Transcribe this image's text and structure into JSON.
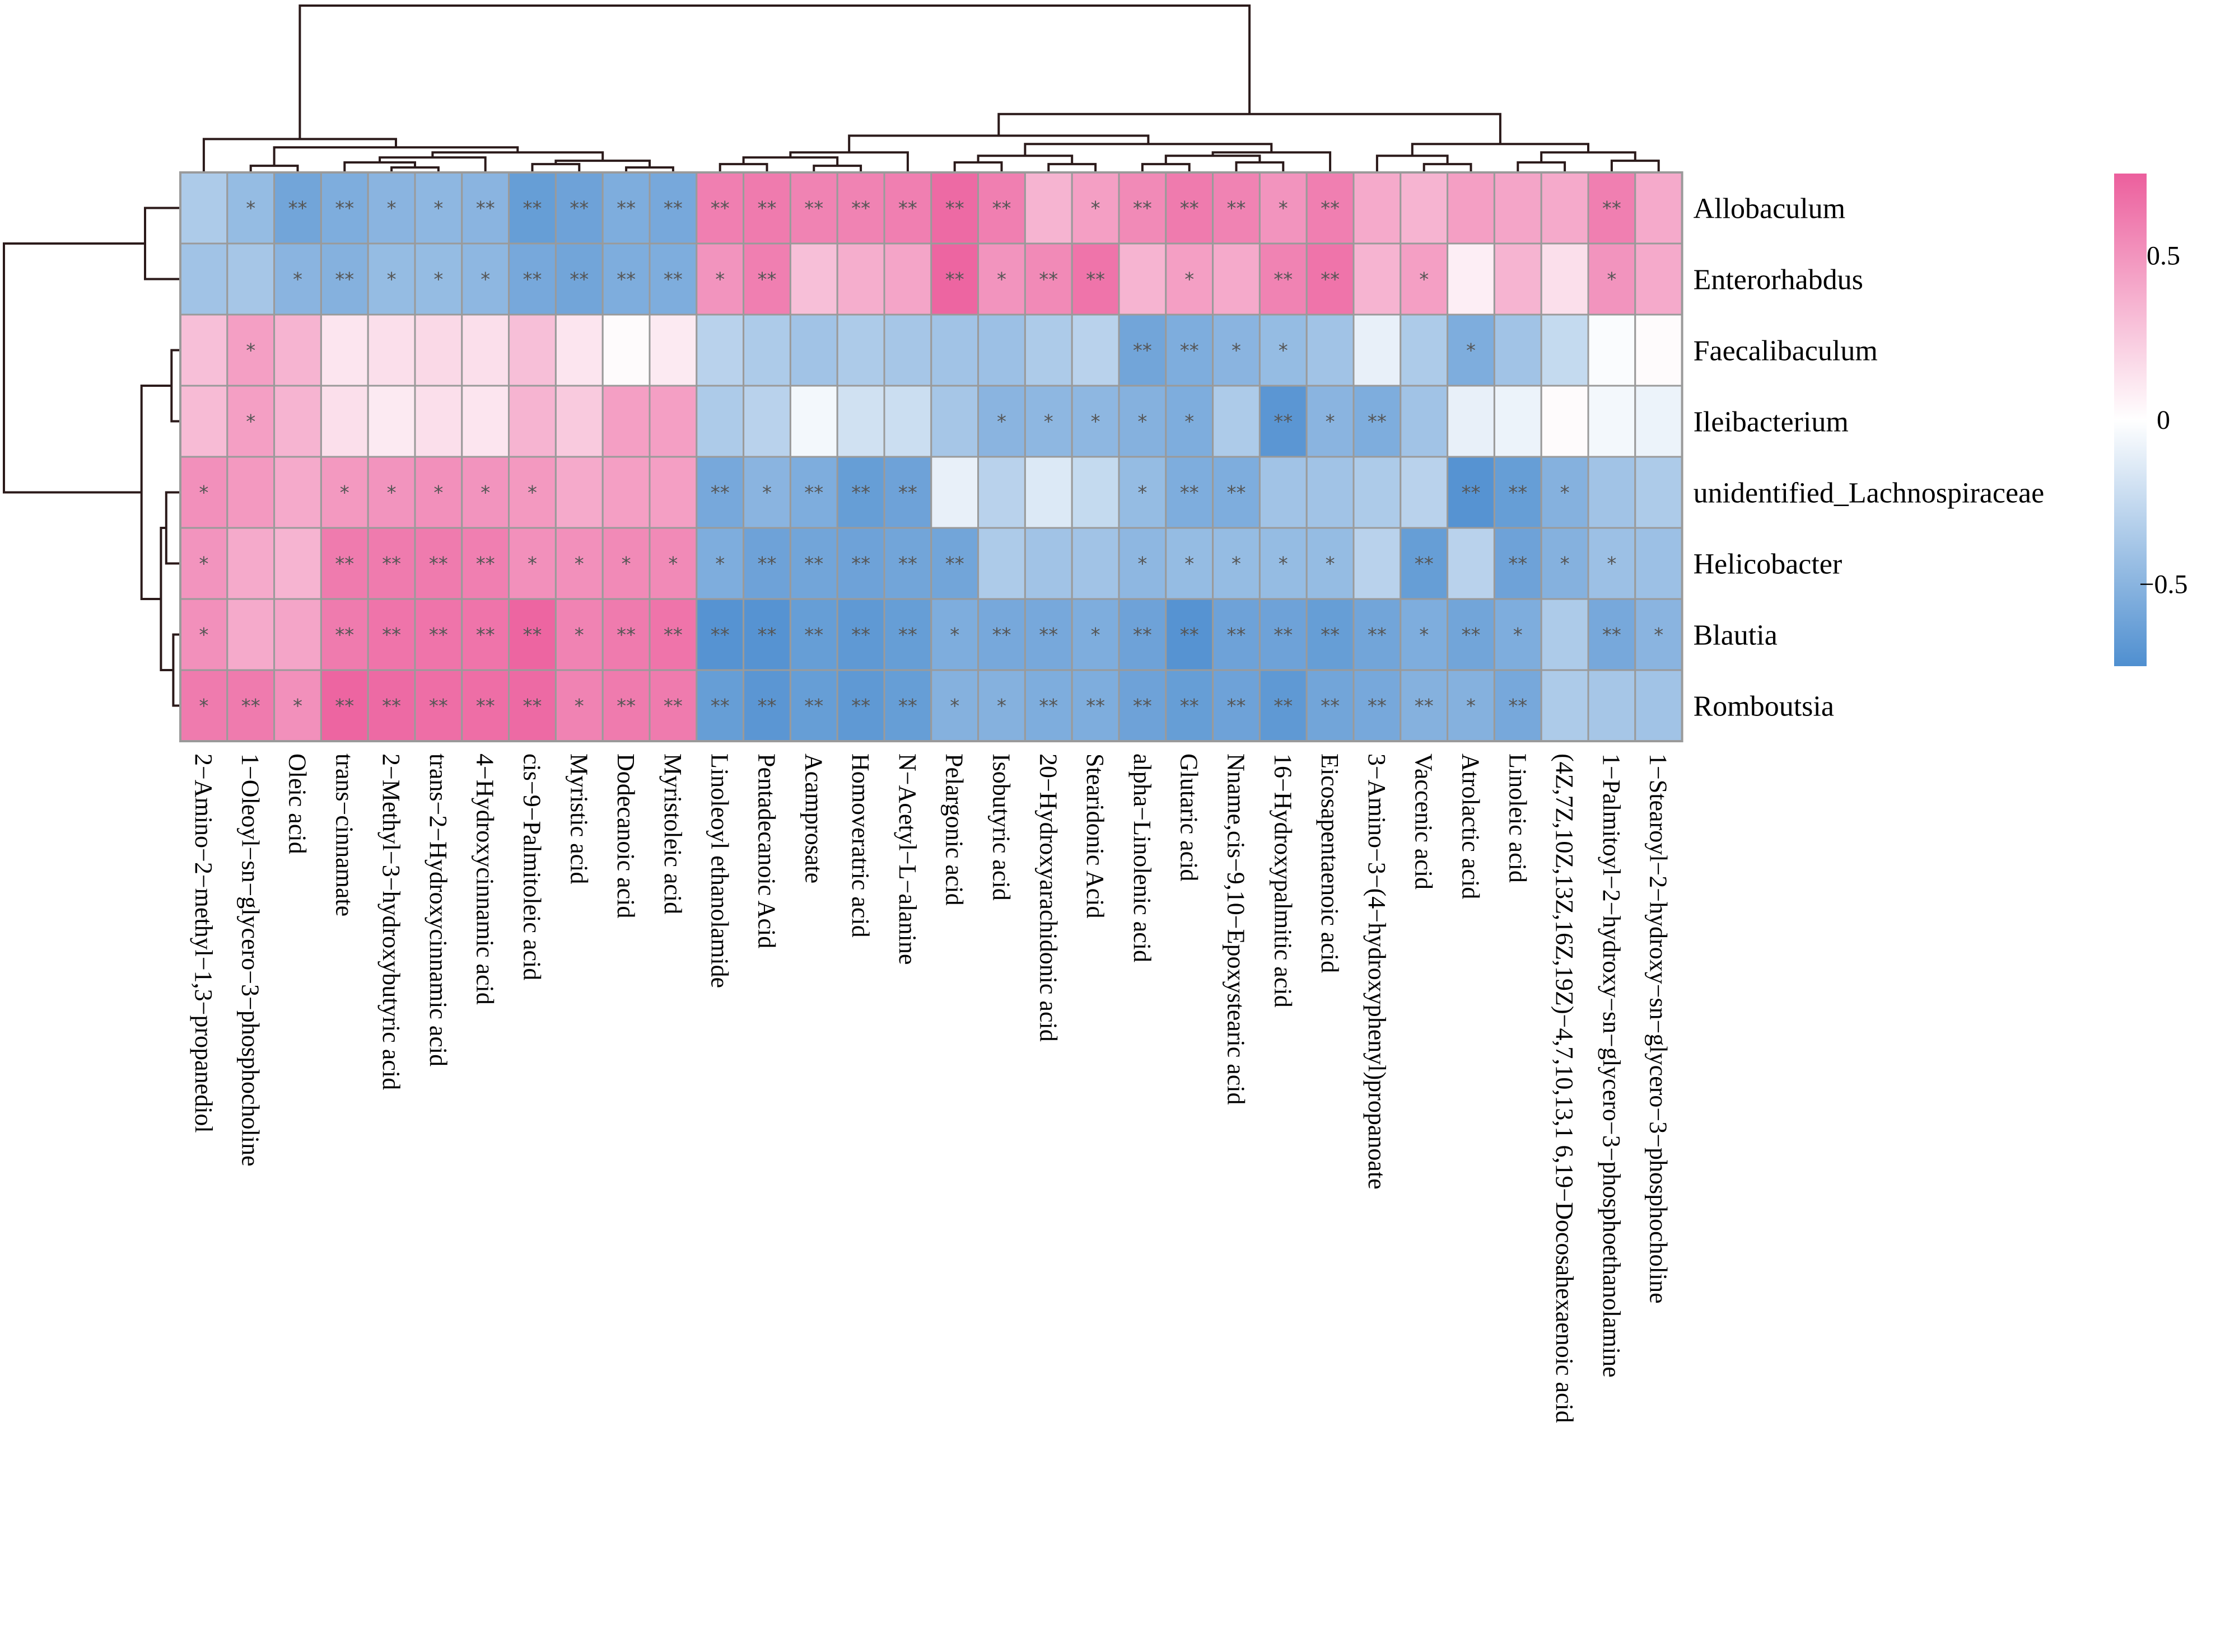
{
  "chart_data": {
    "type": "heatmap",
    "title": "",
    "rows": [
      "Allobaculum",
      "Enterorhabdus",
      "Faecalibaculum",
      "Ileibacterium",
      "unidentified_Lachnospiraceae",
      "Helicobacter",
      "Blautia",
      "Romboutsia"
    ],
    "columns": [
      "2−Amino−2−methyl−1,3−propanediol",
      "1−Oleoyl−sn−glycero−3−phosphocholine",
      "Oleic acid",
      "trans−cinnamate",
      "2−Methyl−3−hydroxybutyric acid",
      "trans−2−Hydroxycinnamic acid",
      "4−Hydroxycinnamic acid",
      "cis−9−Palmitoleic acid",
      "Myristic acid",
      "Dodecanoic acid",
      "Myristoleic acid",
      "Linoleoyl ethanolamide",
      "Pentadecanoic Acid",
      "Acamprosate",
      "Homoveratric acid",
      "N−Acetyl−L−alanine",
      "Pelargonic acid",
      "Isobutyric acid",
      "20−Hydroxyarachidonic acid",
      "Stearidonic Acid",
      "alpha−Linolenic acid",
      "Glutaric acid",
      "Nname,cis−9,10−Epoxystearic acid",
      "16−Hydroxypalmitic acid",
      "Eicosapentaenoic acid",
      "3−Amino−3−(4−hydroxyphenyl)propanoate",
      "Vaccenic acid",
      "Atrolactic acid",
      "Linoleic acid",
      "(4Z,7Z,10Z,13Z,16Z,19Z)−4,7,10,13,1 6,19−Docosahexaenoic acid",
      "1−Palmitoyl−2−hydroxy−sn−glycero−3−phosphoethanolamine",
      "1−Stearoyl−2−hydroxy−sn−glycero−3−phosphocholine"
    ],
    "values": [
      [
        -0.35,
        -0.45,
        -0.6,
        -0.55,
        -0.5,
        -0.48,
        -0.5,
        -0.65,
        -0.62,
        -0.55,
        -0.58,
        0.6,
        0.62,
        0.58,
        0.58,
        0.6,
        0.7,
        0.6,
        0.35,
        0.45,
        0.55,
        0.62,
        0.58,
        0.5,
        0.6,
        0.4,
        0.35,
        0.45,
        0.42,
        0.4,
        0.6,
        0.4
      ],
      [
        -0.4,
        -0.38,
        -0.5,
        -0.52,
        -0.45,
        -0.45,
        -0.48,
        -0.58,
        -0.6,
        -0.55,
        -0.55,
        0.5,
        0.6,
        0.3,
        0.38,
        0.42,
        0.72,
        0.5,
        0.55,
        0.65,
        0.35,
        0.45,
        0.4,
        0.58,
        0.65,
        0.35,
        0.45,
        0.08,
        0.35,
        0.15,
        0.5,
        0.4
      ],
      [
        0.3,
        0.45,
        0.35,
        0.12,
        0.15,
        0.18,
        0.15,
        0.3,
        0.12,
        0.02,
        0.1,
        -0.3,
        -0.35,
        -0.4,
        -0.35,
        -0.38,
        -0.4,
        -0.42,
        -0.35,
        -0.3,
        -0.6,
        -0.55,
        -0.5,
        -0.45,
        -0.4,
        -0.1,
        -0.35,
        -0.55,
        -0.4,
        -0.25,
        -0.02,
        0.02
      ],
      [
        0.32,
        0.45,
        0.35,
        0.15,
        0.1,
        0.15,
        0.12,
        0.35,
        0.25,
        0.45,
        0.45,
        -0.35,
        -0.3,
        -0.05,
        -0.2,
        -0.22,
        -0.38,
        -0.5,
        -0.48,
        -0.48,
        -0.52,
        -0.55,
        -0.35,
        -0.7,
        -0.5,
        -0.55,
        -0.4,
        -0.1,
        -0.08,
        0.02,
        -0.05,
        -0.08
      ],
      [
        0.52,
        0.48,
        0.4,
        0.48,
        0.5,
        0.52,
        0.5,
        0.48,
        0.4,
        0.45,
        0.45,
        -0.58,
        -0.5,
        -0.55,
        -0.65,
        -0.62,
        -0.1,
        -0.3,
        -0.15,
        -0.25,
        -0.45,
        -0.55,
        -0.55,
        -0.4,
        -0.4,
        -0.35,
        -0.3,
        -0.72,
        -0.65,
        -0.52,
        -0.4,
        -0.35
      ],
      [
        0.5,
        0.4,
        0.35,
        0.62,
        0.62,
        0.62,
        0.6,
        0.52,
        0.52,
        0.55,
        0.55,
        -0.55,
        -0.62,
        -0.6,
        -0.62,
        -0.6,
        -0.6,
        -0.35,
        -0.4,
        -0.4,
        -0.48,
        -0.45,
        -0.45,
        -0.45,
        -0.45,
        -0.3,
        -0.65,
        -0.3,
        -0.62,
        -0.52,
        -0.42,
        -0.42
      ],
      [
        0.52,
        0.4,
        0.42,
        0.62,
        0.65,
        0.65,
        0.65,
        0.72,
        0.58,
        0.62,
        0.65,
        -0.72,
        -0.72,
        -0.65,
        -0.68,
        -0.65,
        -0.55,
        -0.58,
        -0.58,
        -0.55,
        -0.62,
        -0.72,
        -0.62,
        -0.62,
        -0.65,
        -0.6,
        -0.55,
        -0.6,
        -0.55,
        -0.35,
        -0.58,
        -0.5
      ],
      [
        0.62,
        0.62,
        0.52,
        0.72,
        0.7,
        0.68,
        0.68,
        0.7,
        0.58,
        0.62,
        0.62,
        -0.65,
        -0.7,
        -0.65,
        -0.68,
        -0.65,
        -0.52,
        -0.52,
        -0.55,
        -0.55,
        -0.62,
        -0.65,
        -0.62,
        -0.68,
        -0.6,
        -0.58,
        -0.52,
        -0.52,
        -0.58,
        -0.35,
        -0.38,
        -0.4
      ]
    ],
    "significance": [
      [
        "",
        "*",
        "**",
        "**",
        "*",
        "*",
        "**",
        "**",
        "**",
        "**",
        "**",
        "**",
        "**",
        "**",
        "**",
        "**",
        "**",
        "**",
        "",
        "*",
        "**",
        "**",
        "**",
        "*",
        "**",
        "",
        "",
        "",
        "",
        "",
        "**",
        ""
      ],
      [
        "",
        "",
        "*",
        "**",
        "*",
        "*",
        "*",
        "**",
        "**",
        "**",
        "**",
        "*",
        "**",
        "",
        "",
        "",
        "**",
        "*",
        "**",
        "**",
        "",
        "*",
        "",
        "**",
        "**",
        "",
        "*",
        "",
        "",
        "",
        "*",
        ""
      ],
      [
        "",
        "*",
        "",
        "",
        "",
        "",
        "",
        "",
        "",
        "",
        "",
        "",
        "",
        "",
        "",
        "",
        "",
        "",
        "",
        "",
        "**",
        "**",
        "*",
        "*",
        "",
        "",
        "",
        "*",
        "",
        "",
        "",
        ""
      ],
      [
        "",
        "*",
        "",
        "",
        "",
        "",
        "",
        "",
        "",
        "",
        "",
        "",
        "",
        "",
        "",
        "",
        "",
        "*",
        "*",
        "*",
        "*",
        "*",
        "",
        "**",
        "*",
        "**",
        "",
        "",
        "",
        "",
        "",
        ""
      ],
      [
        "*",
        "",
        "",
        "*",
        "*",
        "*",
        "*",
        "*",
        "",
        "",
        "",
        "**",
        "*",
        "**",
        "**",
        "**",
        "",
        "",
        "",
        "",
        "*",
        "**",
        "**",
        "",
        "",
        "",
        "",
        "**",
        "**",
        "*",
        "",
        ""
      ],
      [
        "*",
        "",
        "",
        "**",
        "**",
        "**",
        "**",
        "*",
        "*",
        "*",
        "*",
        "*",
        "**",
        "**",
        "**",
        "**",
        "**",
        "",
        "",
        "",
        "*",
        "*",
        "*",
        "*",
        "*",
        "",
        "**",
        "",
        "**",
        "*",
        "*",
        ""
      ],
      [
        "*",
        "",
        "",
        "**",
        "**",
        "**",
        "**",
        "**",
        "*",
        "**",
        "**",
        "**",
        "**",
        "**",
        "**",
        "**",
        "*",
        "**",
        "**",
        "*",
        "**",
        "**",
        "**",
        "**",
        "**",
        "**",
        "*",
        "**",
        "*",
        "",
        "**",
        "*"
      ],
      [
        "*",
        "**",
        "*",
        "**",
        "**",
        "**",
        "**",
        "**",
        "*",
        "**",
        "**",
        "**",
        "**",
        "**",
        "**",
        "**",
        "*",
        "*",
        "**",
        "**",
        "**",
        "**",
        "**",
        "**",
        "**",
        "**",
        "**",
        "*",
        "**",
        "",
        "",
        ""
      ]
    ],
    "legend": {
      "ticks": [
        0.5,
        0,
        -0.5
      ],
      "tick_labels": [
        "0.5",
        "0",
        "−0.5"
      ],
      "range": [
        -0.75,
        0.75
      ],
      "colors": {
        "low": "#4f8fd0",
        "mid": "#ffffff",
        "high": "#ec5f9d"
      }
    },
    "grid_color": "#9a9a9a",
    "dendrogram_color": "#2b1a1a"
  }
}
